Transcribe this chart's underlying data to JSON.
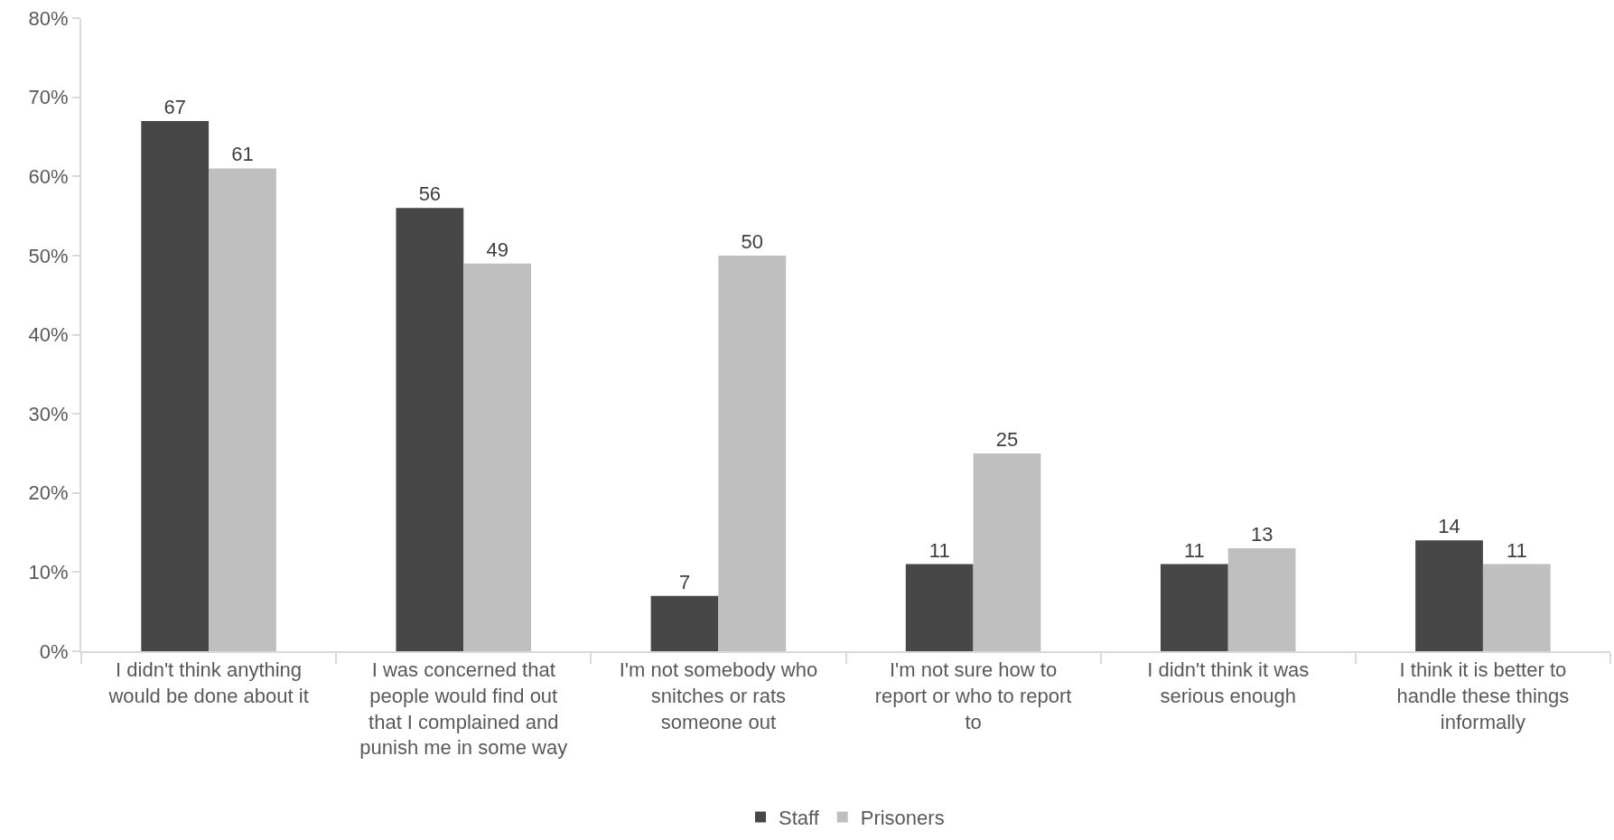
{
  "chart_data": {
    "type": "bar",
    "categories": [
      "I didn't think anything would be done about it",
      "I was concerned that people would find out that I complained and punish me in some way",
      "I'm not somebody who snitches or rats someone out",
      "I'm not sure how to report or who to report to",
      "I didn't think it was serious enough",
      "I think it is better to handle these things informally"
    ],
    "series": [
      {
        "name": "Staff",
        "color": "#474747",
        "values": [
          67,
          56,
          7,
          11,
          11,
          14
        ]
      },
      {
        "name": "Prisoners",
        "color": "#bfbfbf",
        "values": [
          61,
          49,
          50,
          25,
          13,
          11
        ]
      }
    ],
    "ylim": [
      0,
      80
    ],
    "yticks": [
      {
        "value": 0,
        "label": "0%"
      },
      {
        "value": 10,
        "label": "10%"
      },
      {
        "value": 20,
        "label": "20%"
      },
      {
        "value": 30,
        "label": "30%"
      },
      {
        "value": 40,
        "label": "40%"
      },
      {
        "value": 50,
        "label": "50%"
      },
      {
        "value": 60,
        "label": "60%"
      },
      {
        "value": 70,
        "label": "70%"
      },
      {
        "value": 80,
        "label": "80%"
      }
    ],
    "data_labels": true,
    "legend": "bottom"
  }
}
